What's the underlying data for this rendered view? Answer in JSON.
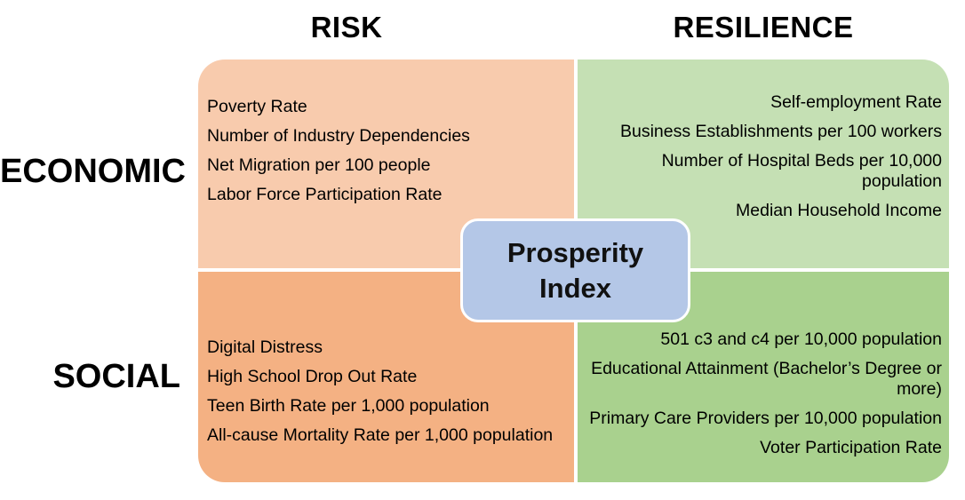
{
  "diagram": {
    "columns": [
      {
        "id": "risk",
        "label": "RISK"
      },
      {
        "id": "resilience",
        "label": "RESILIENCE"
      }
    ],
    "rows": [
      {
        "id": "economic",
        "label": "ECONOMIC"
      },
      {
        "id": "social",
        "label": "SOCIAL"
      }
    ],
    "center": {
      "label": "Prosperity Index",
      "color": "#b4c7e7",
      "border_color": "#ffffff"
    },
    "quadrants": {
      "economic_risk": {
        "color": "#f8cbad",
        "items": [
          "Poverty Rate",
          "Number of Industry Dependencies",
          "Net Migration per 100 people",
          "Labor Force Participation Rate"
        ]
      },
      "economic_resilience": {
        "color": "#c5e0b4",
        "items": [
          "Self-employment Rate",
          "Business Establishments per 100 workers",
          "Number of Hospital Beds per 10,000 population",
          "Median Household Income"
        ]
      },
      "social_risk": {
        "color": "#f4b183",
        "items": [
          "Digital Distress",
          "High School Drop Out Rate",
          "Teen Birth Rate per 1,000 population",
          "All-cause Mortality Rate per 1,000 population"
        ]
      },
      "social_resilience": {
        "color": "#a9d18e",
        "items": [
          "501 c3 and c4 per 10,000 population",
          "Educational Attainment (Bachelor’s Degree or more)",
          "Primary Care Providers per 10,000 population",
          "Voter Participation Rate"
        ]
      }
    }
  }
}
